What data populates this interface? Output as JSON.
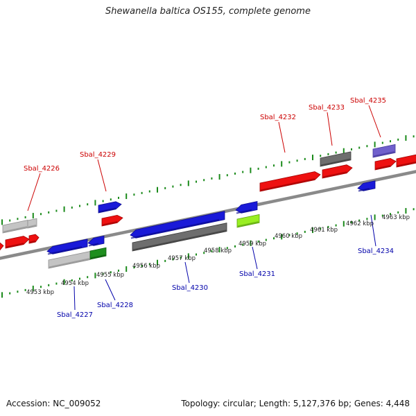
{
  "title": "Shewanella baltica OS155, complete genome",
  "footer": {
    "accession": "Accession: NC_009052",
    "summary": "Topology: circular; Length: 5,127,376 bp; Genes: 4,448"
  },
  "colors": {
    "backbone": "#8a8a8a",
    "tick": "#1a8a1a",
    "top_label": "#cc0000",
    "bottom_label": "#0000aa",
    "red": "#ee1111",
    "blue": "#1a1ad8",
    "gray": "#6e6e6e",
    "lightgray": "#c4c4c4",
    "green": "#1e8e1e",
    "lime": "#99ee22",
    "purple": "#7060cc"
  },
  "kbp_labels": [
    "4953 kbp",
    "4954 kbp",
    "4955 kbp",
    "4956 kbp",
    "4957 kbp",
    "4958 kbp",
    "4959 kbp",
    "4960 kbp",
    "4961 kbp",
    "4962 kbp",
    "4963 kbp"
  ],
  "top_gene_labels": [
    "Sbal_4226",
    "Sbal_4229",
    "Sbal_4232",
    "Sbal_4233",
    "Sbal_4235"
  ],
  "bottom_gene_labels": [
    "Sbal_4227",
    "Sbal_4228",
    "Sbal_4230",
    "Sbal_4231",
    "Sbal_4234"
  ]
}
